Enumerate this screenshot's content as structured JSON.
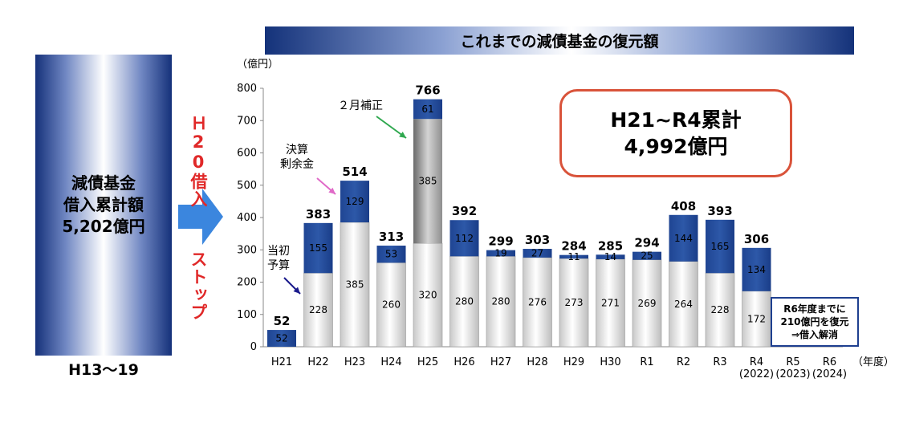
{
  "left_panel": {
    "lines": [
      "減債基金",
      "借入累計額",
      "5,202億円"
    ],
    "period": "H13〜19"
  },
  "vertical_text": {
    "top": "Ｈ20借入",
    "bottom": "ストップ"
  },
  "colors": {
    "base_bar": "#ffffff",
    "repay_bar": "#2d58a8",
    "supplement_bar": "#8e8e8e",
    "accent_red": "#e02828",
    "box_border": "#d9533a",
    "note_border": "#1e3f8f"
  },
  "cumulative_box": {
    "line1": "H21~R4累計",
    "line2": "4,992億円"
  },
  "annotations": {
    "initial_budget": [
      "当初",
      "予算"
    ],
    "surplus": [
      "決算",
      "剰余金"
    ],
    "february_supplement": "２月補正"
  },
  "note_box": {
    "lines": [
      "R6年度までに",
      "210億円を復元",
      "⇒借入解消"
    ]
  },
  "chart_data": {
    "type": "bar",
    "stacked": true,
    "title": "これまでの減債基金の復元額",
    "ylabel": "（億円）",
    "xlabel": "（年度）",
    "ylim": [
      0,
      800
    ],
    "yticks": [
      0,
      100,
      200,
      300,
      400,
      500,
      600,
      700,
      800
    ],
    "grid": false,
    "categories": [
      "H21",
      "H22",
      "H23",
      "H24",
      "H25",
      "H26",
      "H27",
      "H28",
      "H29",
      "H30",
      "R1",
      "R2",
      "R3",
      "R4",
      "R5",
      "R6"
    ],
    "category_sublabels": [
      "",
      "",
      "",
      "",
      "",
      "",
      "",
      "",
      "",
      "",
      "",
      "",
      "",
      "(2022)",
      "(2023)",
      "(2024)"
    ],
    "series": [
      {
        "values": [
          0,
          228,
          385,
          260,
          320,
          280,
          280,
          276,
          273,
          271,
          269,
          264,
          228,
          172,
          null,
          null
        ]
      },
      {
        "values": [
          0,
          0,
          0,
          0,
          385,
          0,
          0,
          0,
          0,
          0,
          0,
          0,
          0,
          0,
          null,
          null
        ]
      },
      {
        "values": [
          52,
          155,
          129,
          53,
          61,
          112,
          19,
          27,
          11,
          14,
          25,
          144,
          165,
          134,
          null,
          null
        ]
      }
    ],
    "totals": [
      52,
      383,
      514,
      313,
      766,
      392,
      299,
      303,
      284,
      285,
      294,
      408,
      393,
      306,
      null,
      null
    ]
  }
}
